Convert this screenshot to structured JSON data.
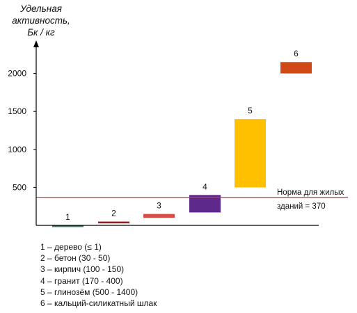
{
  "chart_data": {
    "type": "bar",
    "subtype": "floating-range",
    "ylabel_lines": [
      "Удельная",
      "активность,",
      "Бк / кг"
    ],
    "yticks": [
      500,
      1000,
      1500,
      2000
    ],
    "ylim": [
      0,
      2400
    ],
    "categories": [
      "1",
      "2",
      "3",
      "4",
      "5",
      "6"
    ],
    "ranges": [
      {
        "label": "1",
        "low": 0,
        "high": 1,
        "color": "#2f7d5a"
      },
      {
        "label": "2",
        "low": 30,
        "high": 50,
        "color": "#a11a22"
      },
      {
        "label": "3",
        "low": 100,
        "high": 150,
        "color": "#d94b45"
      },
      {
        "label": "4",
        "low": 170,
        "high": 400,
        "color": "#5d2a8c"
      },
      {
        "label": "5",
        "low": 500,
        "high": 1400,
        "color": "#ffc000"
      },
      {
        "label": "6",
        "low": 2000,
        "high": 2150,
        "color": "#d04a18"
      }
    ],
    "reference_line": {
      "value": 370,
      "color": "#e03030",
      "label_lines": [
        "Норма для жилых",
        "зданий = 370"
      ]
    },
    "legend": [
      "1 – дерево (≤ 1)",
      "2 – бетон (30 - 50)",
      "3 – кирпич (100 - 150)",
      "4 – гранит (170 - 400)",
      "5 – глинозём (500 - 1400)",
      "6 – кальций-силикатный шлак"
    ]
  }
}
